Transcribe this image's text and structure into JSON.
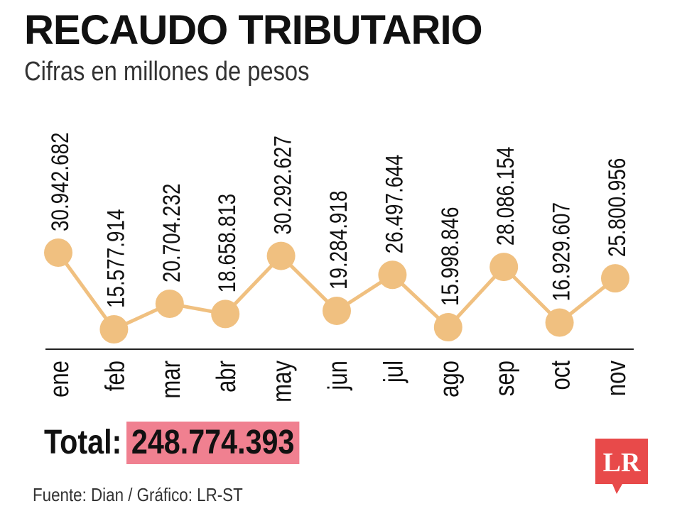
{
  "header": {
    "title": "RECAUDO TRIBUTARIO",
    "subtitle": "Cifras en millones de pesos"
  },
  "chart_data": {
    "type": "line",
    "categories": [
      "ene",
      "feb",
      "mar",
      "abr",
      "may",
      "jun",
      "jul",
      "ago",
      "sep",
      "oct",
      "nov"
    ],
    "values": [
      30942682,
      15577914,
      20704232,
      18658813,
      30292627,
      19284918,
      26497644,
      15998846,
      28086154,
      16929607,
      25800956
    ],
    "data_labels": [
      "30.942.682",
      "15.577.914",
      "20.704.232",
      "18.658.813",
      "30.292.627",
      "19.284.918",
      "26.497.644",
      "15.998.846",
      "28.086.154",
      "16.929.607",
      "25.800.956"
    ],
    "title": "RECAUDO TRIBUTARIO",
    "subtitle": "Cifras en millones de pesos",
    "grid": false,
    "legend": "none",
    "colors": {
      "line": "#f0c080",
      "marker": "#f0c080",
      "axis": "#222222",
      "text": "#111111"
    }
  },
  "footer": {
    "total_label": "Total:",
    "total_value": "248.774.393",
    "total_highlight": "#f08090",
    "source": "Fuente: Dian / Gráfico: LR-ST",
    "logo_text": "LR",
    "logo_color": "#e84a4a"
  }
}
